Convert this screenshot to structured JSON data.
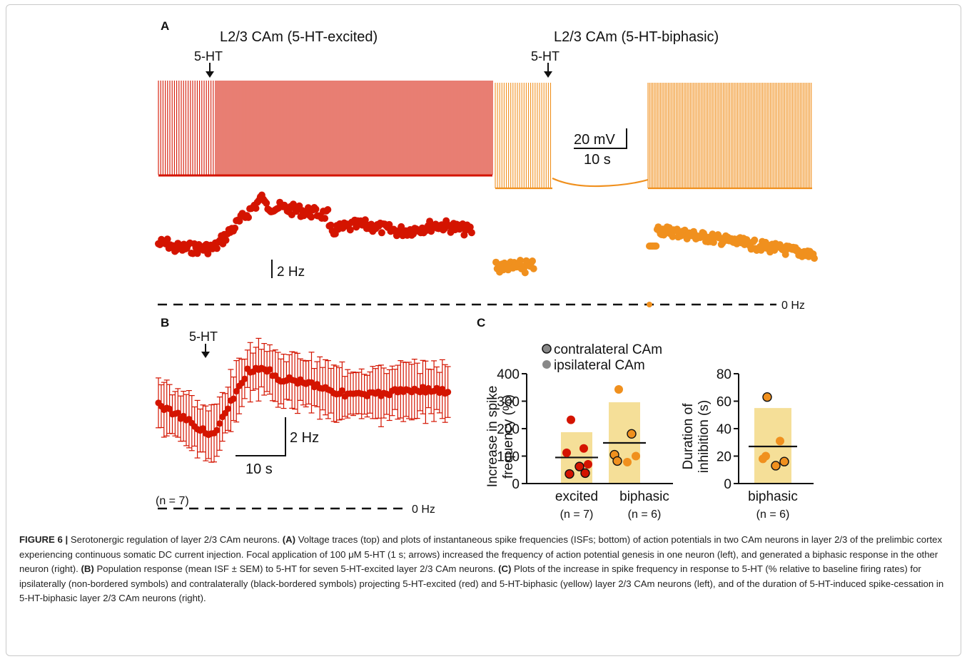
{
  "figure": {
    "panel_a": {
      "label": "A",
      "left_title": "L2/3 CAm (5-HT-excited)",
      "right_title": "L2/3 CAm (5-HT-biphasic)",
      "arrow_label_left": "5-HT",
      "arrow_label_right": "5-HT",
      "scale_voltage": "20 mV",
      "scale_time": "10 s",
      "scale_freq": "2 Hz",
      "zero_label": "0 Hz"
    },
    "panel_b": {
      "label": "B",
      "arrow_label": "5-HT",
      "scale_freq": "2 Hz",
      "scale_time": "10 s",
      "n_label": "(n = 7)",
      "zero_label": "0 Hz"
    },
    "panel_c": {
      "label": "C",
      "legend_contra": "contralateral CAm",
      "legend_ipsi": "ipsilateral CAm",
      "ylabel_left_1": "Increase in spike",
      "ylabel_left_2": "frequency (%)",
      "ylabel_right_1": "Duration of",
      "ylabel_right_2": "inhibition (s)",
      "left_ticks": [
        "400",
        "300",
        "200",
        "100",
        "0"
      ],
      "right_ticks": [
        "80",
        "60",
        "40",
        "20",
        "0"
      ],
      "cat_excited": "excited",
      "cat_biphasic": "biphasic",
      "n_excited": "(n = 7)",
      "n_biphasic": "(n = 6)",
      "cat_biphasic_right": "biphasic",
      "n_biphasic_right": "(n = 6)"
    },
    "colors": {
      "excited": "#d41400",
      "biphasic": "#f0901e",
      "bar": "#f5df98"
    }
  },
  "chart_data": [
    {
      "type": "bar",
      "panel": "C-left",
      "ylabel": "Increase in spike frequency (%)",
      "ylim": [
        0,
        400
      ],
      "categories": [
        "excited",
        "biphasic"
      ],
      "bar_values": [
        187,
        296
      ],
      "mean_lines": [
        95,
        148
      ],
      "points": {
        "excited": [
          {
            "value": 232,
            "side": "ipsilateral"
          },
          {
            "value": 128,
            "side": "ipsilateral"
          },
          {
            "value": 112,
            "side": "ipsilateral"
          },
          {
            "value": 70,
            "side": "ipsilateral"
          },
          {
            "value": 62,
            "side": "contralateral"
          },
          {
            "value": 35,
            "side": "contralateral"
          },
          {
            "value": 38,
            "side": "contralateral"
          }
        ],
        "biphasic": [
          {
            "value": 343,
            "side": "ipsilateral"
          },
          {
            "value": 181,
            "side": "contralateral"
          },
          {
            "value": 105,
            "side": "contralateral"
          },
          {
            "value": 100,
            "side": "ipsilateral"
          },
          {
            "value": 78,
            "side": "ipsilateral"
          },
          {
            "value": 82,
            "side": "contralateral"
          }
        ]
      }
    },
    {
      "type": "bar",
      "panel": "C-right",
      "ylabel": "Duration of inhibition (s)",
      "ylim": [
        0,
        80
      ],
      "categories": [
        "biphasic"
      ],
      "bar_values": [
        55
      ],
      "mean_lines": [
        27
      ],
      "points": {
        "biphasic": [
          {
            "value": 63,
            "side": "contralateral"
          },
          {
            "value": 31,
            "side": "ipsilateral"
          },
          {
            "value": 18,
            "side": "ipsilateral"
          },
          {
            "value": 16,
            "side": "contralateral"
          },
          {
            "value": 13,
            "side": "contralateral"
          },
          {
            "value": 20,
            "side": "ipsilateral"
          }
        ]
      }
    }
  ],
  "caption": {
    "fig_label": "FIGURE 6 |",
    "p1": " Serotonergic regulation of layer 2/3 CAm neurons. ",
    "a_label": "(A)",
    "p2": " Voltage traces (top) and plots of instantaneous spike frequencies (ISFs; bottom) of action potentials in two CAm neurons in layer 2/3 of the prelimbic cortex experiencing continuous somatic DC current injection. Focal application of 100 μM 5-HT (1 s; arrows) increased the frequency of action potential genesis in one neuron (left), and generated a biphasic response in the other neuron (right). ",
    "b_label": "(B)",
    "p3": " Population response (mean ISF ± SEM) to 5-HT for seven 5-HT-excited layer 2/3 CAm neurons. ",
    "c_label": "(C)",
    "p4": " Plots of the increase in spike frequency in response to 5-HT (% relative to baseline firing rates) for ipsilaterally (non-bordered symbols) and contralaterally (black-bordered symbols) projecting 5-HT-excited (red) and 5-HT-biphasic (yellow) layer 2/3 CAm neurons (left), and of the duration of 5-HT-induced spike-cessation in 5-HT-biphasic layer 2/3 CAm neurons (right)."
  }
}
